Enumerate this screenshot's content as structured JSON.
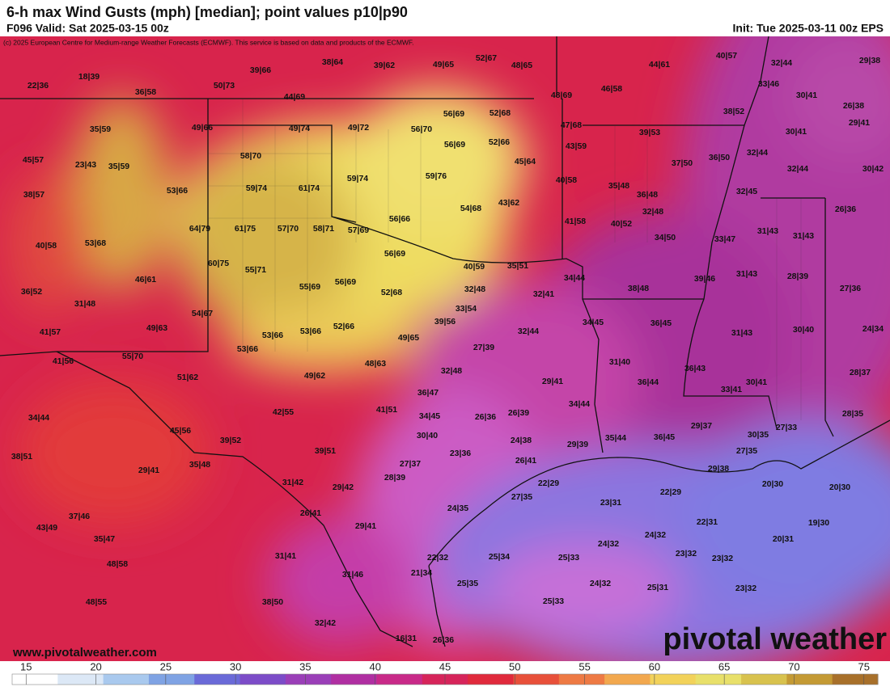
{
  "header": {
    "title": "6-h max Wind Gusts (mph) [median]; point values p10|p90",
    "valid": "F096 Valid: Sat 2025-03-15 00z",
    "init": "Init: Tue 2025-03-11 00z EPS",
    "credit": "(c) 2025 European Centre for Medium-range Weather Forecasts (ECMWF). This service is based on data and products of the ECMWF."
  },
  "watermark": {
    "brand": "pivotal weather",
    "url": "www.pivotalweather.com"
  },
  "points": [
    "38|64",
    "39|62",
    "49|65",
    "52|67",
    "48|65",
    "44|61",
    "40|57",
    "32|44",
    "29|38",
    "22|36",
    "18|39",
    "39|66",
    "50|73",
    "36|58",
    "46|58",
    "33|46",
    "48|69",
    "44|69",
    "30|41",
    "26|38",
    "56|69",
    "52|68",
    "38|52",
    "29|41",
    "35|59",
    "49|66",
    "49|74",
    "49|72",
    "56|70",
    "47|68",
    "39|53",
    "30|41",
    "56|69",
    "52|66",
    "43|59",
    "58|70",
    "45|57",
    "23|43",
    "35|59",
    "45|64",
    "37|50",
    "36|50",
    "32|44",
    "32|44",
    "30|42",
    "59|74",
    "59|76",
    "40|58",
    "35|48",
    "59|74",
    "61|74",
    "53|66",
    "38|57",
    "36|48",
    "32|45",
    "43|62",
    "54|68",
    "32|48",
    "26|36",
    "56|66",
    "41|58",
    "40|52",
    "64|79",
    "61|75",
    "57|70",
    "58|71",
    "57|69",
    "31|43",
    "31|43",
    "34|50",
    "33|47",
    "53|68",
    "40|58",
    "56|69",
    "40|59",
    "35|51",
    "60|75",
    "55|71",
    "34|44",
    "39|46",
    "31|43",
    "28|39",
    "46|61",
    "56|69",
    "55|69",
    "32|48",
    "38|48",
    "27|36",
    "36|52",
    "32|41",
    "52|68",
    "31|48",
    "33|54",
    "54|67",
    "34|45",
    "36|45",
    "39|56",
    "49|63",
    "52|66",
    "41|57",
    "53|66",
    "53|66",
    "49|65",
    "32|44",
    "31|43",
    "30|40",
    "24|34",
    "27|39",
    "53|66",
    "55|70",
    "41|56",
    "48|63",
    "31|40",
    "36|43",
    "32|48",
    "28|37",
    "49|62",
    "51|62",
    "36|44",
    "29|41",
    "30|41",
    "33|41",
    "36|47",
    "34|44",
    "41|51",
    "42|55",
    "34|45",
    "34|44",
    "26|36",
    "26|39",
    "28|35",
    "29|37",
    "27|33",
    "45|56",
    "30|40",
    "30|35",
    "35|44",
    "36|45",
    "39|52",
    "24|38",
    "29|39",
    "38|51",
    "39|51",
    "23|36",
    "27|35",
    "26|41",
    "27|37",
    "35|48",
    "29|41",
    "29|38",
    "28|39",
    "22|29",
    "20|30",
    "20|30",
    "31|42",
    "22|29",
    "29|42",
    "27|35",
    "23|31",
    "24|35",
    "26|41",
    "37|46",
    "22|31",
    "19|30",
    "43|49",
    "29|41",
    "24|32",
    "20|31",
    "35|47",
    "24|32",
    "23|32",
    "23|32",
    "31|41",
    "22|32",
    "25|34",
    "25|33",
    "48|58",
    "21|34",
    "31|46",
    "24|32",
    "25|35",
    "25|31",
    "23|32",
    "25|33",
    "48|55",
    "38|50",
    "32|42",
    "16|31",
    "26|36"
  ],
  "colorbar": {
    "ticks": [
      15,
      20,
      25,
      30,
      35,
      40,
      45,
      50,
      55,
      60,
      65,
      70,
      75
    ],
    "clim": [
      14,
      76
    ],
    "colors": [
      "#ffffff",
      "#dce8f6",
      "#a9c9ee",
      "#7fa3e4",
      "#6a6ad8",
      "#7c4cc8",
      "#9a3fb8",
      "#b02fa2",
      "#c82a88",
      "#d6245a",
      "#e02a3c",
      "#e8503a",
      "#ee7a44",
      "#f2a84e",
      "#f2d25a",
      "#e8e06a",
      "#d8c24e",
      "#c49a34",
      "#a8702a"
    ]
  }
}
